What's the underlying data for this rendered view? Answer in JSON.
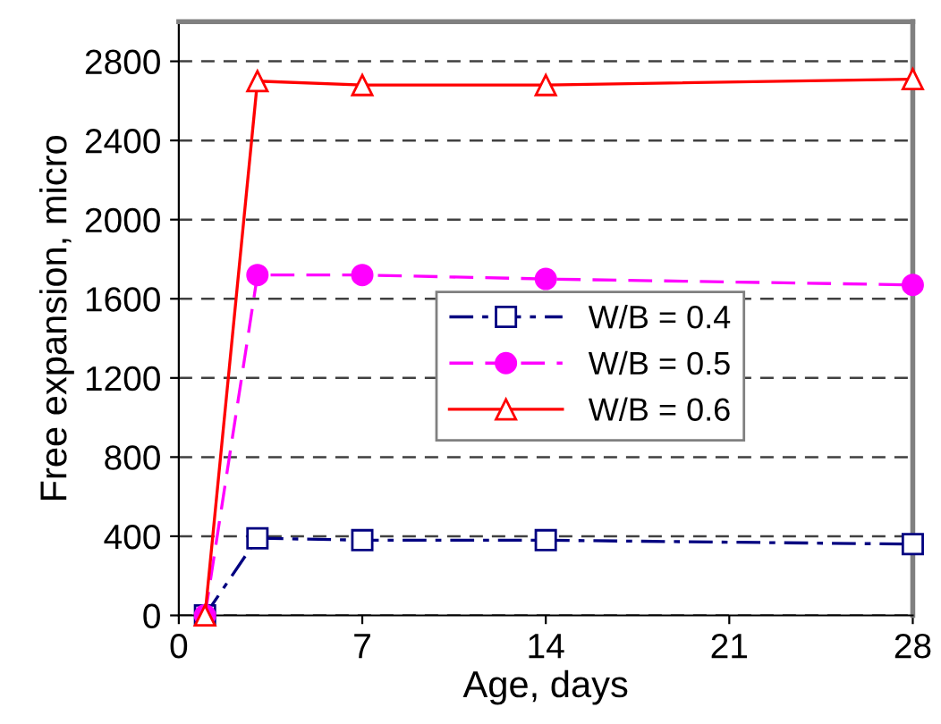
{
  "chart_data": {
    "type": "line",
    "xlabel": "Age, days",
    "ylabel": "Free expansion, micro",
    "xlim": [
      0,
      28
    ],
    "xticks": [
      0,
      7,
      14,
      21,
      28
    ],
    "ylim": [
      0,
      3000
    ],
    "yticks": [
      0,
      400,
      800,
      1200,
      1600,
      2000,
      2400,
      2800
    ],
    "grid": "y",
    "legend": "right",
    "series": [
      {
        "name": "W/B = 0.4",
        "color": "#000080",
        "marker": "square",
        "line_style": "dashdot",
        "x": [
          1,
          3,
          7,
          14,
          28
        ],
        "values": [
          0,
          390,
          380,
          380,
          360
        ]
      },
      {
        "name": "W/B = 0.5",
        "color": "#ff00ff",
        "marker": "circle",
        "line_style": "dashed",
        "x": [
          1,
          3,
          7,
          14,
          28
        ],
        "values": [
          0,
          1720,
          1720,
          1700,
          1670
        ]
      },
      {
        "name": "W/B = 0.6",
        "color": "#ff0000",
        "marker": "triangle",
        "line_style": "solid",
        "x": [
          1,
          3,
          7,
          14,
          28
        ],
        "values": [
          0,
          2700,
          2680,
          2680,
          2710
        ]
      }
    ]
  }
}
